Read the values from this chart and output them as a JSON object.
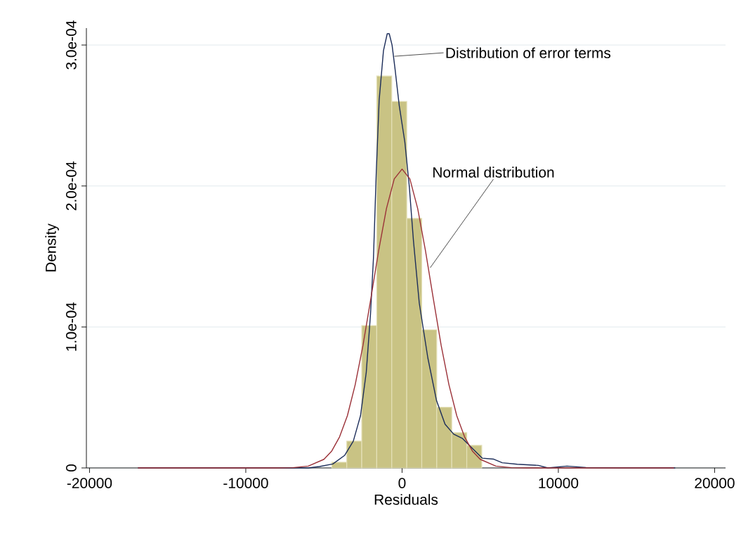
{
  "chart_data": {
    "type": "histogram",
    "xlabel": "Residuals",
    "ylabel": "Density",
    "bins": [
      -4500,
      -3540,
      -2580,
      -1620,
      -660,
      300,
      1260,
      2220,
      3180,
      4140,
      5100
    ],
    "values": [
      4e-06,
      1.9e-05,
      0.000101,
      0.000278,
      0.00026,
      0.000177,
      9.8e-05,
      4.3e-05,
      2.5e-05,
      1.6e-05
    ],
    "color": "#c9c384",
    "series": [
      {
        "type": "line",
        "color": "#1b2c59",
        "x": [
          -16900,
          -12000,
          -8000,
          -6000,
          -5280,
          -4430,
          -3667,
          -3120,
          -2660,
          -2290,
          -2020,
          -1830,
          -1650,
          -1465,
          -1190,
          -950,
          -820,
          -640,
          -460,
          -180,
          180,
          460,
          730,
          1100,
          1650,
          2200,
          2750,
          3300,
          3850,
          4400,
          5140,
          5870,
          6410,
          7370,
          8720,
          9330,
          10550,
          11770,
          14000,
          17480
        ],
        "values": [
          0,
          0,
          0,
          0,
          1e-06,
          2.8e-06,
          9e-06,
          1.9e-05,
          3.7e-05,
          6.8e-05,
          0.000109,
          0.000149,
          0.00021,
          0.000261,
          0.000296,
          0.000308,
          0.000308,
          0.0003,
          0.000284,
          0.000257,
          0.000231,
          0.0002,
          0.000161,
          0.000117,
          7.8e-05,
          4.8e-05,
          3.1e-05,
          2.4e-05,
          2.1e-05,
          1.5e-05,
          6.9e-06,
          6.2e-06,
          3.7e-06,
          2.6e-06,
          1.8e-06,
          0,
          1.3e-06,
          3e-07,
          0,
          0
        ]
      },
      {
        "type": "line",
        "color": "#9b3138",
        "x": [
          -16900,
          -10000,
          -8000,
          -7000,
          -6000,
          -5000,
          -4500,
          -4000,
          -3500,
          -3000,
          -2500,
          -2000,
          -1500,
          -1000,
          -500,
          0,
          500,
          1000,
          1500,
          2000,
          2500,
          3000,
          3500,
          4000,
          4500,
          5000,
          6000,
          7000,
          8000,
          10000,
          17400
        ],
        "values": [
          0,
          0,
          0,
          2e-07,
          1.3e-06,
          6.1e-06,
          1.2e-05,
          2.2e-05,
          3.7e-05,
          5.9e-05,
          8.7e-05,
          0.00012,
          0.000154,
          0.000184,
          0.000205,
          0.000212,
          0.000205,
          0.000184,
          0.000154,
          0.00012,
          8.7e-05,
          5.9e-05,
          3.7e-05,
          2.2e-05,
          1.2e-05,
          6.1e-06,
          1.3e-06,
          2e-07,
          0,
          0,
          0
        ]
      }
    ],
    "xlim": [
      -20200,
      20700
    ],
    "ylim": [
      0,
      0.000312
    ],
    "xticks": [
      -20000,
      -10000,
      0,
      10000,
      20000
    ],
    "yticks": [
      {
        "value": 0,
        "label": "0"
      },
      {
        "value": 0.0001,
        "label": "1.0e-04"
      },
      {
        "value": 0.0002,
        "label": "2.0e-04"
      },
      {
        "value": 0.0003,
        "label": "3.0e-04"
      }
    ],
    "grid": "y",
    "annotations": [
      {
        "text": "Distribution of error terms",
        "x": -490,
        "y": 0.000292
      },
      {
        "text": "Normal distribution",
        "x": 1800,
        "y": 0.000142
      }
    ]
  }
}
